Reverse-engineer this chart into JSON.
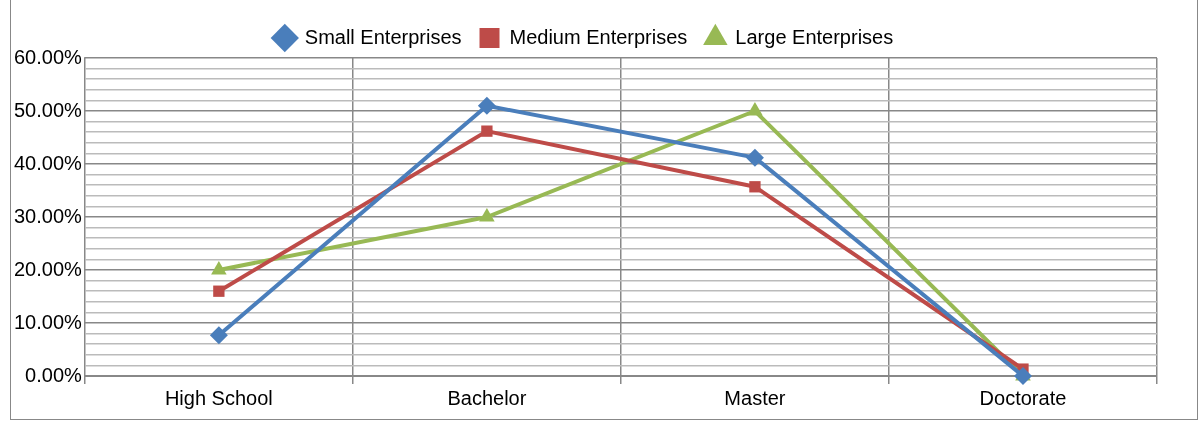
{
  "chart_data": {
    "type": "line",
    "categories": [
      "High School",
      "Bachelor",
      "Master",
      "Doctorate"
    ],
    "series": [
      {
        "name": "Small Enterprises",
        "color": "#4a7ebb",
        "marker": "diamond",
        "values": [
          7.7,
          51,
          41.2,
          0
        ]
      },
      {
        "name": "Medium Enterprises",
        "color": "#be4b48",
        "marker": "square",
        "values": [
          16,
          46.2,
          35.7,
          1.3
        ]
      },
      {
        "name": "Large Enterprises",
        "color": "#98b954",
        "marker": "triangle",
        "values": [
          20,
          30,
          50,
          0
        ]
      }
    ],
    "ylim": [
      0,
      60
    ],
    "yticks": [
      {
        "value": 0,
        "label": "0.00%"
      },
      {
        "value": 2,
        "label": null
      },
      {
        "value": 4,
        "label": null
      },
      {
        "value": 6,
        "label": null
      },
      {
        "value": 8,
        "label": null
      },
      {
        "value": 10,
        "label": "10.00%"
      },
      {
        "value": 12,
        "label": null
      },
      {
        "value": 14,
        "label": null
      },
      {
        "value": 16,
        "label": null
      },
      {
        "value": 18,
        "label": null
      },
      {
        "value": 20,
        "label": "20.00%"
      },
      {
        "value": 22,
        "label": null
      },
      {
        "value": 24,
        "label": null
      },
      {
        "value": 26,
        "label": null
      },
      {
        "value": 28,
        "label": null
      },
      {
        "value": 30,
        "label": "30.00%"
      },
      {
        "value": 32,
        "label": null
      },
      {
        "value": 34,
        "label": null
      },
      {
        "value": 36,
        "label": null
      },
      {
        "value": 38,
        "label": null
      },
      {
        "value": 40,
        "label": "40.00%"
      },
      {
        "value": 42,
        "label": null
      },
      {
        "value": 44,
        "label": null
      },
      {
        "value": 46,
        "label": null
      },
      {
        "value": 48,
        "label": null
      },
      {
        "value": 50,
        "label": "50.00%"
      },
      {
        "value": 52,
        "label": null
      },
      {
        "value": 54,
        "label": null
      },
      {
        "value": 56,
        "label": null
      },
      {
        "value": 58,
        "label": null
      },
      {
        "value": 60,
        "label": "60.00%"
      }
    ],
    "grid": true,
    "legend": "top",
    "line_style": "solid"
  }
}
